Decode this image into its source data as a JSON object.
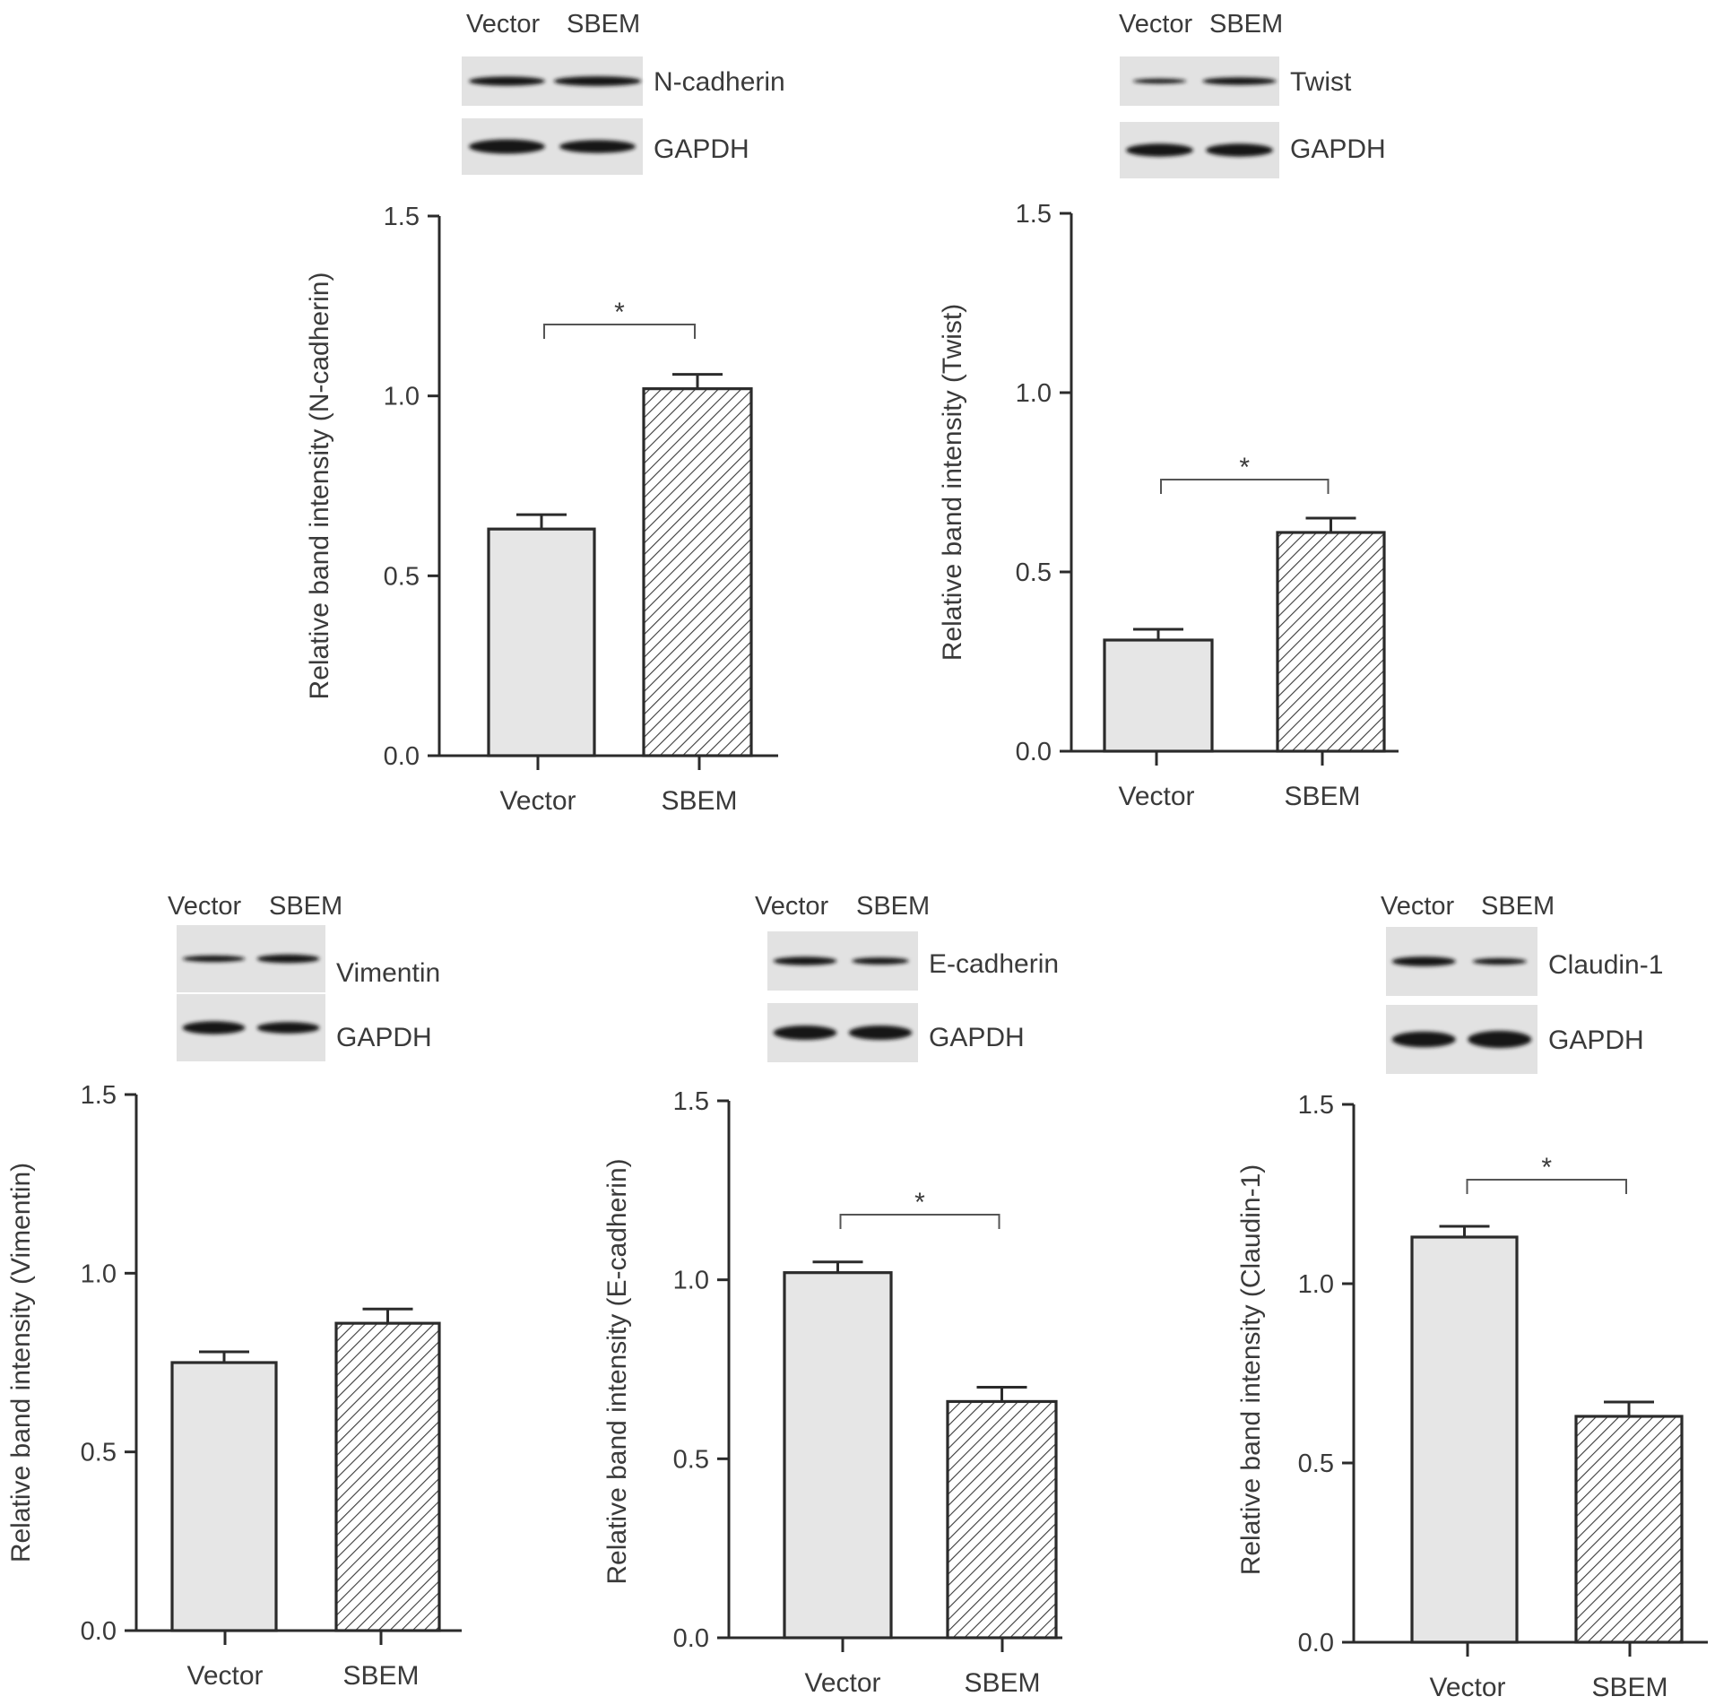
{
  "colors": {
    "axis": "#2b2b2b",
    "text": "#3a3a3a",
    "bar_vector_fill": "#e6e6e6",
    "bar_sbem_hatch": "#3a3a3a",
    "blot_background": "#e2e2e2",
    "blot_band": "#161616"
  },
  "chart_data": [
    {
      "type": "bar",
      "protein": "N-cadherin",
      "blot_lane_labels": [
        "Vector",
        "SBEM"
      ],
      "blot_rows": [
        "N-cadherin",
        "GAPDH"
      ],
      "categories": [
        "Vector",
        "SBEM"
      ],
      "values": [
        0.63,
        1.02
      ],
      "errors": [
        0.04,
        0.04
      ],
      "ylabel": "Relative band intensity (N-cadherin)",
      "ylim": [
        0,
        1.5
      ],
      "yticks": [
        "0.0",
        "0.5",
        "1.0",
        "1.5"
      ],
      "significance": "*",
      "grid": false
    },
    {
      "type": "bar",
      "protein": "Twist",
      "blot_lane_labels": [
        "Vector",
        "SBEM"
      ],
      "blot_rows": [
        "Twist",
        "GAPDH"
      ],
      "categories": [
        "Vector",
        "SBEM"
      ],
      "values": [
        0.31,
        0.61
      ],
      "errors": [
        0.03,
        0.04
      ],
      "ylabel": "Relative band intensity (Twist)",
      "ylim": [
        0,
        1.5
      ],
      "yticks": [
        "0.0",
        "0.5",
        "1.0",
        "1.5"
      ],
      "significance": "*",
      "grid": false
    },
    {
      "type": "bar",
      "protein": "Vimentin",
      "blot_lane_labels": [
        "Vector",
        "SBEM"
      ],
      "blot_rows": [
        "Vimentin",
        "GAPDH"
      ],
      "categories": [
        "Vector",
        "SBEM"
      ],
      "values": [
        0.75,
        0.86
      ],
      "errors": [
        0.03,
        0.04
      ],
      "ylabel": "Relative band intensity (Vimentin)",
      "ylim": [
        0,
        1.5
      ],
      "yticks": [
        "0.0",
        "0.5",
        "1.0",
        "1.5"
      ],
      "significance": "",
      "grid": false
    },
    {
      "type": "bar",
      "protein": "E-cadherin",
      "blot_lane_labels": [
        "Vector",
        "SBEM"
      ],
      "blot_rows": [
        "E-cadherin",
        "GAPDH"
      ],
      "categories": [
        "Vector",
        "SBEM"
      ],
      "values": [
        1.02,
        0.66
      ],
      "errors": [
        0.03,
        0.04
      ],
      "ylabel": "Relative band intensity (E-cadherin)",
      "ylim": [
        0,
        1.5
      ],
      "yticks": [
        "0.0",
        "0.5",
        "1.0",
        "1.5"
      ],
      "significance": "*",
      "grid": false
    },
    {
      "type": "bar",
      "protein": "Claudin-1",
      "blot_lane_labels": [
        "Vector",
        "SBEM"
      ],
      "blot_rows": [
        "Claudin-1",
        "GAPDH"
      ],
      "categories": [
        "Vector",
        "SBEM"
      ],
      "values": [
        1.13,
        0.63
      ],
      "errors": [
        0.03,
        0.04
      ],
      "ylabel": "Relative band intensity (Claudin-1)",
      "ylim": [
        0,
        1.5
      ],
      "yticks": [
        "0.0",
        "0.5",
        "1.0",
        "1.5"
      ],
      "significance": "*",
      "grid": false
    }
  ]
}
